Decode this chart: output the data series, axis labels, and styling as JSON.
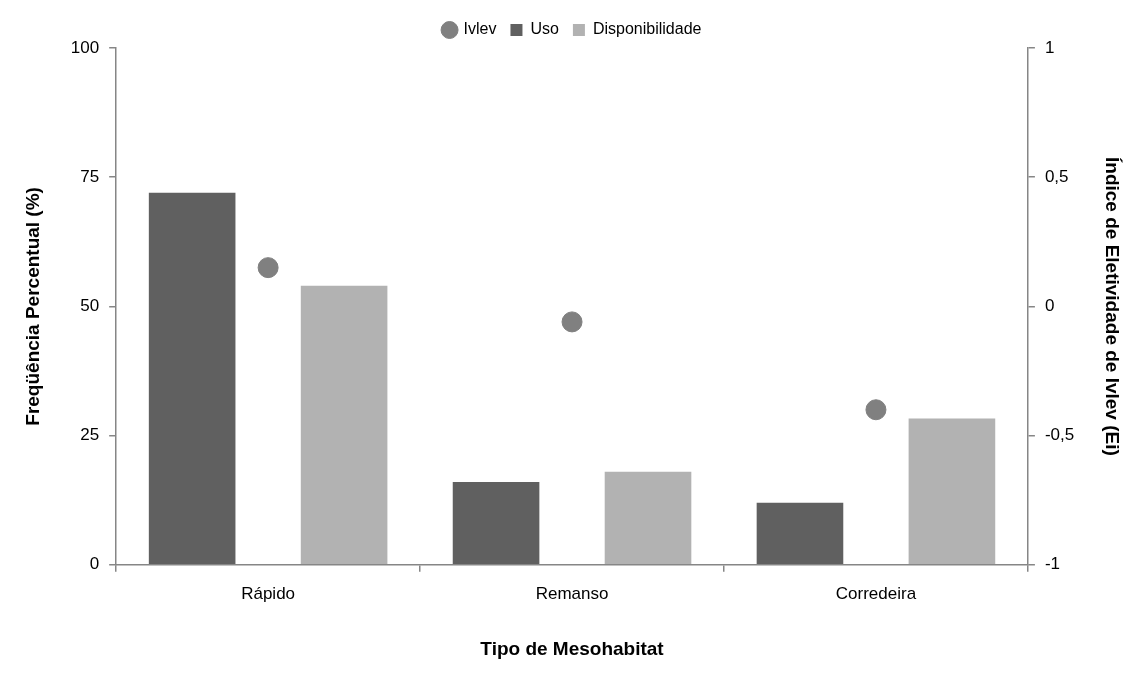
{
  "chart_data": {
    "type": "bar",
    "xlabel": "Tipo de Mesohabitat",
    "ylabel": "Freqüência Percentual (%)",
    "y2label": "Índice de Eletividade de Ivlev (Ei)",
    "categories": [
      "Rápido",
      "Remanso",
      "Corredeira"
    ],
    "series": [
      {
        "name": "Uso",
        "color": "#606060",
        "values": [
          72,
          16,
          12
        ]
      },
      {
        "name": "Disponibilidade",
        "color": "#b2b2b2",
        "values": [
          54,
          18,
          28.3
        ]
      },
      {
        "name": "Ivlev",
        "type": "scatter",
        "axis": "y2",
        "color": "#808080",
        "values": [
          0.15,
          -0.06,
          -0.4
        ]
      }
    ],
    "ylim": [
      0,
      100
    ],
    "yticks": [
      0,
      25,
      50,
      75,
      100
    ],
    "y2lim": [
      -1,
      1
    ],
    "y2ticks": [
      -1,
      {
        "value": -0.5,
        "label": "-0,5"
      },
      0,
      {
        "value": 0.5,
        "label": "0,5"
      },
      1
    ],
    "legend": "top",
    "marker": "circle"
  }
}
